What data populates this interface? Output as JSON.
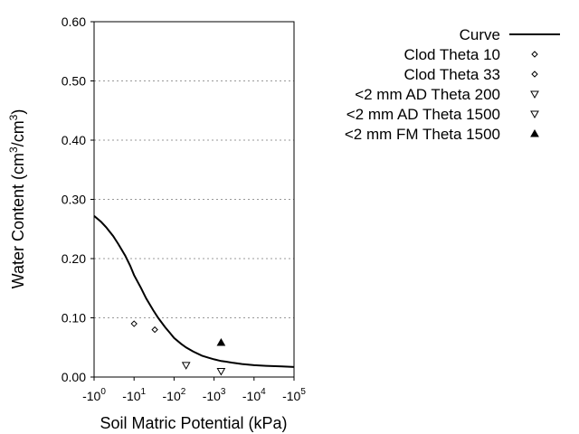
{
  "chart_data": {
    "type": "scatter",
    "title": "",
    "xlabel": "Soil Matric Potential (kPa)",
    "ylabel_main": "Water Content (cm",
    "ylabel_sup1": "3",
    "ylabel_mid": "/cm",
    "ylabel_sup2": "3",
    "ylabel_end": ")",
    "x_scale": "log",
    "xlim": [
      1,
      100000
    ],
    "ylim": [
      0,
      0.6
    ],
    "x_ticks": [
      {
        "value": 1,
        "base": "-10",
        "exp": "0"
      },
      {
        "value": 10,
        "base": "-10",
        "exp": "1"
      },
      {
        "value": 100,
        "base": "-10",
        "exp": "2"
      },
      {
        "value": 1000,
        "base": "-10",
        "exp": "3"
      },
      {
        "value": 10000,
        "base": "-10",
        "exp": "4"
      },
      {
        "value": 100000,
        "base": "-10",
        "exp": "5"
      }
    ],
    "y_ticks": [
      {
        "value": 0.0,
        "label": "0.00"
      },
      {
        "value": 0.1,
        "label": "0.10"
      },
      {
        "value": 0.2,
        "label": "0.20"
      },
      {
        "value": 0.3,
        "label": "0.30"
      },
      {
        "value": 0.4,
        "label": "0.40"
      },
      {
        "value": 0.5,
        "label": "0.50"
      },
      {
        "value": 0.6,
        "label": "0.60"
      }
    ],
    "grid": "horizontal-dotted",
    "legend_position": "top-right",
    "curve": {
      "name": "Curve",
      "points": [
        [
          1,
          0.272
        ],
        [
          1.5,
          0.262
        ],
        [
          2,
          0.253
        ],
        [
          3,
          0.238
        ],
        [
          4,
          0.225
        ],
        [
          6,
          0.205
        ],
        [
          8,
          0.188
        ],
        [
          10,
          0.172
        ],
        [
          15,
          0.15
        ],
        [
          20,
          0.133
        ],
        [
          30,
          0.113
        ],
        [
          40,
          0.1
        ],
        [
          60,
          0.084
        ],
        [
          80,
          0.074
        ],
        [
          100,
          0.066
        ],
        [
          150,
          0.056
        ],
        [
          200,
          0.05
        ],
        [
          300,
          0.043
        ],
        [
          500,
          0.036
        ],
        [
          700,
          0.033
        ],
        [
          1000,
          0.03
        ],
        [
          1500,
          0.027
        ],
        [
          2000,
          0.026
        ],
        [
          3000,
          0.024
        ],
        [
          5000,
          0.022
        ],
        [
          10000,
          0.02
        ],
        [
          20000,
          0.019
        ],
        [
          50000,
          0.018
        ],
        [
          100000,
          0.017
        ]
      ]
    },
    "series": [
      {
        "name": "Clod Theta 10",
        "marker": "diamond",
        "points": [
          [
            10,
            0.09
          ]
        ]
      },
      {
        "name": "Clod Theta 33",
        "marker": "diamond",
        "points": [
          [
            33,
            0.08
          ]
        ]
      },
      {
        "name": "<2 mm AD Theta 200",
        "marker": "triangle-down-open",
        "points": [
          [
            200,
            0.02
          ]
        ]
      },
      {
        "name": "<2 mm AD Theta 1500",
        "marker": "triangle-down-open",
        "points": [
          [
            1500,
            0.01
          ]
        ]
      },
      {
        "name": "<2 mm FM Theta 1500",
        "marker": "triangle-up-filled",
        "points": [
          [
            1500,
            0.058
          ]
        ]
      }
    ]
  }
}
